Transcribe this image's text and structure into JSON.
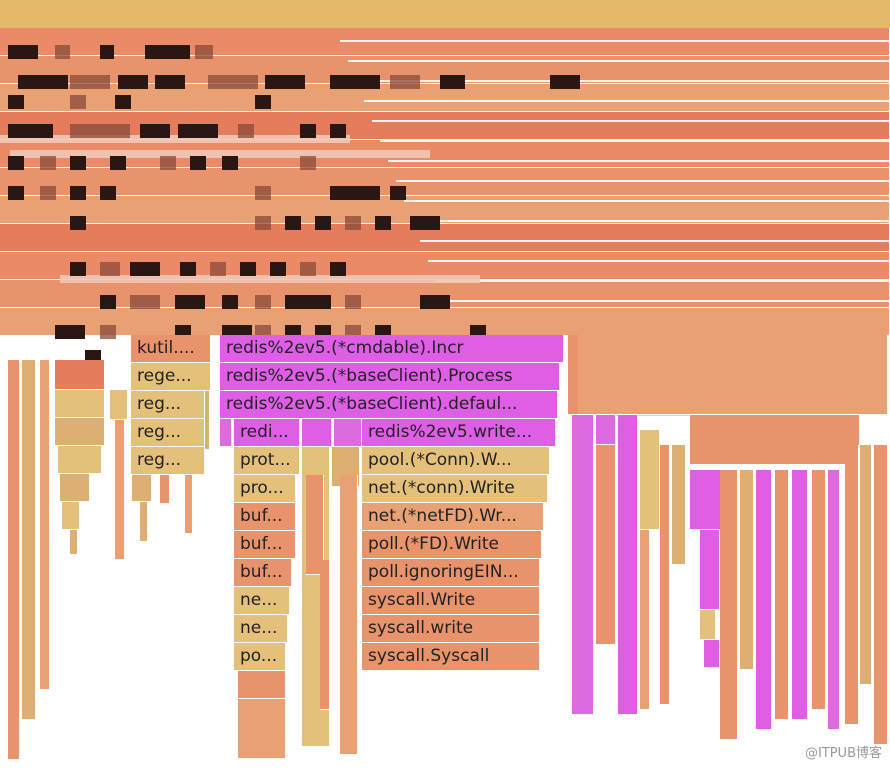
{
  "flamegraph": {
    "colors": {
      "orange_light": "#e9a073",
      "orange": "#e8936b",
      "orange_dark": "#e57c5c",
      "salmon": "#ea8a66",
      "tan": "#ddb072",
      "yellow": "#e4c07a",
      "magenta": "#df5ee6",
      "pink": "#dc6ae0",
      "topbar": "#e3b96a"
    },
    "frames": [
      {
        "label": "kutil....",
        "name": "frame-kutil"
      },
      {
        "label": "rege...",
        "name": "frame-regex-1"
      },
      {
        "label": "reg...",
        "name": "frame-regex-2"
      },
      {
        "label": "reg...",
        "name": "frame-regex-3"
      },
      {
        "label": "reg...",
        "name": "frame-regex-4"
      },
      {
        "label": "redis%2ev5.(*cmdable).Incr",
        "name": "frame-cmdable-incr"
      },
      {
        "label": "redis%2ev5.(*baseClient).Process",
        "name": "frame-baseclient-process"
      },
      {
        "label": "redis%2ev5.(*baseClient).defaul...",
        "name": "frame-baseclient-default"
      },
      {
        "label": "redi...",
        "name": "frame-redis-short"
      },
      {
        "label": "redis%2ev5.write...",
        "name": "frame-redis-write"
      },
      {
        "label": "prot...",
        "name": "frame-proto-1"
      },
      {
        "label": "pro...",
        "name": "frame-proto-2"
      },
      {
        "label": "buf...",
        "name": "frame-bufio-1"
      },
      {
        "label": "buf...",
        "name": "frame-bufio-2"
      },
      {
        "label": "buf...",
        "name": "frame-bufio-3"
      },
      {
        "label": "ne...",
        "name": "frame-net-1"
      },
      {
        "label": "ne...",
        "name": "frame-net-2"
      },
      {
        "label": "po...",
        "name": "frame-poll-short"
      },
      {
        "label": "pool.(*Conn).W...",
        "name": "frame-pool-conn-write"
      },
      {
        "label": "net.(*conn).Write",
        "name": "frame-net-conn-write"
      },
      {
        "label": "net.(*netFD).Wr...",
        "name": "frame-net-netfd-write"
      },
      {
        "label": "poll.(*FD).Write",
        "name": "frame-poll-fd-write"
      },
      {
        "label": "poll.ignoringEIN...",
        "name": "frame-poll-ignoring"
      },
      {
        "label": "syscall.Write",
        "name": "frame-syscall-write-upper"
      },
      {
        "label": "syscall.write",
        "name": "frame-syscall-write-lower"
      },
      {
        "label": "syscall.Syscall",
        "name": "frame-syscall-syscall"
      }
    ],
    "watermark": "@ITPUB博客"
  }
}
